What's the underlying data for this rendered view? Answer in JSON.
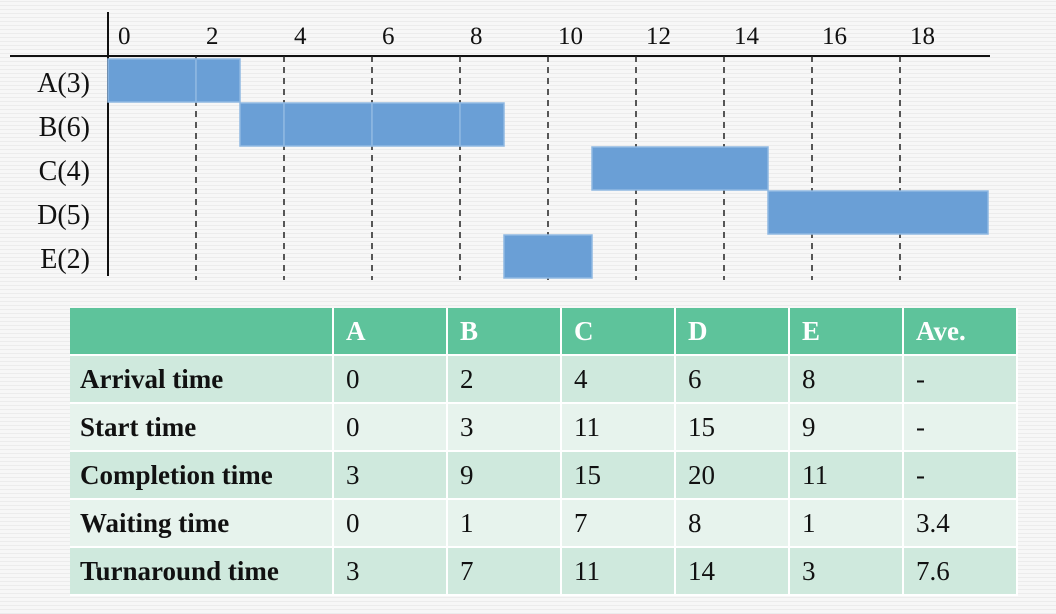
{
  "chart_data": {
    "type": "gantt",
    "x_ticks": [
      "0",
      "2",
      "4",
      "6",
      "8",
      "10",
      "12",
      "14",
      "16",
      "18"
    ],
    "xlim": [
      0,
      20
    ],
    "rows": [
      {
        "label": "A(3)",
        "segments": [
          [
            0,
            2
          ],
          [
            2,
            3
          ]
        ]
      },
      {
        "label": "B(6)",
        "segments": [
          [
            3,
            4
          ],
          [
            4,
            6
          ],
          [
            6,
            8
          ],
          [
            8,
            9
          ]
        ]
      },
      {
        "label": "C(4)",
        "segments": [
          [
            11,
            15
          ]
        ]
      },
      {
        "label": "D(5)",
        "segments": [
          [
            15,
            20
          ]
        ]
      },
      {
        "label": "E(2)",
        "segments": [
          [
            9,
            11
          ]
        ]
      }
    ],
    "bar_color": "#6a9fd6",
    "grid": "dashed-vertical"
  },
  "table": {
    "headers": [
      "",
      "A",
      "B",
      "C",
      "D",
      "E",
      "Ave."
    ],
    "rows": [
      {
        "label": "Arrival time",
        "values": [
          "0",
          "2",
          "4",
          "6",
          "8",
          "-"
        ]
      },
      {
        "label": "Start time",
        "values": [
          "0",
          "3",
          "11",
          "15",
          "9",
          "-"
        ]
      },
      {
        "label": "Completion time",
        "values": [
          "3",
          "9",
          "15",
          "20",
          "11",
          "-"
        ]
      },
      {
        "label": "Waiting time",
        "values": [
          "0",
          "1",
          "7",
          "8",
          "1",
          "3.4"
        ]
      },
      {
        "label": "Turnaround time",
        "values": [
          "3",
          "7",
          "11",
          "14",
          "3",
          "7.6"
        ]
      }
    ],
    "header_color": "#5ec39b",
    "row_color_a": "#cfe9dd",
    "row_color_b": "#e7f3ed"
  }
}
